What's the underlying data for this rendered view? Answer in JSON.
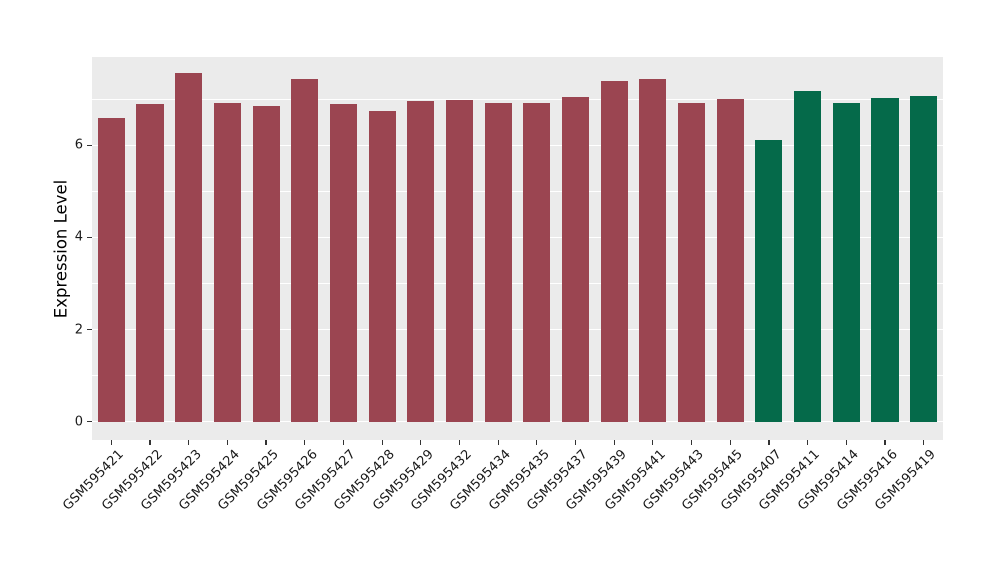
{
  "chart_data": {
    "type": "bar",
    "title": "",
    "xlabel": "",
    "ylabel": "Expression Level",
    "categories": [
      "GSM595421",
      "GSM595422",
      "GSM595423",
      "GSM595424",
      "GSM595425",
      "GSM595426",
      "GSM595427",
      "GSM595428",
      "GSM595429",
      "GSM595432",
      "GSM595434",
      "GSM595435",
      "GSM595437",
      "GSM595439",
      "GSM595441",
      "GSM595443",
      "GSM595445",
      "GSM595407",
      "GSM595411",
      "GSM595414",
      "GSM595416",
      "GSM595419"
    ],
    "values": [
      6.59,
      6.9,
      7.57,
      6.92,
      6.86,
      7.45,
      6.9,
      6.74,
      6.96,
      6.99,
      6.93,
      6.91,
      7.05,
      7.4,
      7.45,
      6.92,
      7.01,
      6.12,
      7.19,
      6.92,
      7.04,
      7.08
    ],
    "groups": [
      "maroon",
      "maroon",
      "maroon",
      "maroon",
      "maroon",
      "maroon",
      "maroon",
      "maroon",
      "maroon",
      "maroon",
      "maroon",
      "maroon",
      "maroon",
      "maroon",
      "maroon",
      "maroon",
      "maroon",
      "green",
      "green",
      "green",
      "green",
      "green"
    ],
    "palette": {
      "maroon": "#9B4551",
      "green": "#056A4A"
    },
    "ylim": [
      -0.4,
      7.92
    ],
    "y_ticks_major": [
      0,
      2,
      4,
      6
    ],
    "y_ticks_minor": [
      1,
      3,
      5,
      7
    ],
    "bar_width_fraction": 0.7,
    "grid": true,
    "legend": "none",
    "panel_bg": "#EBEBEB",
    "grid_color": "#FFFFFF",
    "axis_text_color": "#1A1A1A"
  }
}
